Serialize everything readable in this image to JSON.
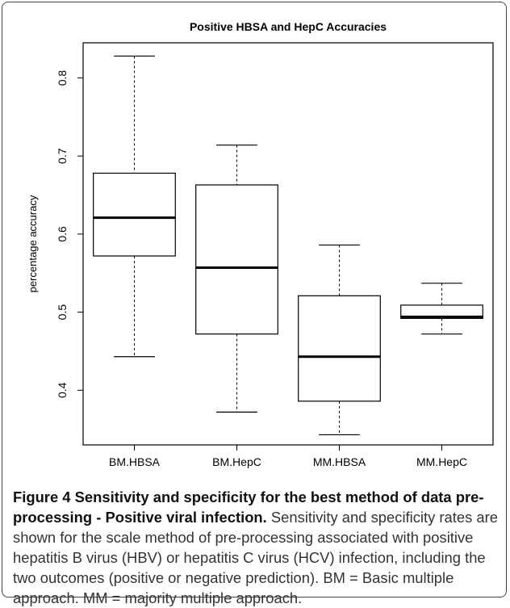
{
  "chart_data": {
    "type": "box",
    "title": "Positive HBSA and HepC Accuracies",
    "ylabel": "percentage accuracy",
    "xlabel": "",
    "ylim": [
      0.33,
      0.845
    ],
    "yticks": [
      0.4,
      0.5,
      0.6,
      0.7,
      0.8
    ],
    "ytick_labels": [
      "0.4",
      "0.5",
      "0.6",
      "0.7",
      "0.8"
    ],
    "grid": false,
    "categories": [
      "BM.HBSA",
      "BM.HepC",
      "MM.HBSA",
      "MM.HepC"
    ],
    "boxes": [
      {
        "name": "BM.HBSA",
        "min": 0.443,
        "q1": 0.572,
        "median": 0.621,
        "q3": 0.678,
        "max": 0.828
      },
      {
        "name": "BM.HepC",
        "min": 0.372,
        "q1": 0.472,
        "median": 0.557,
        "q3": 0.663,
        "max": 0.714
      },
      {
        "name": "MM.HBSA",
        "min": 0.343,
        "q1": 0.386,
        "median": 0.443,
        "q3": 0.521,
        "max": 0.586
      },
      {
        "name": "MM.HepC",
        "min": 0.472,
        "q1": 0.492,
        "median": 0.494,
        "q3": 0.509,
        "max": 0.537
      }
    ]
  },
  "caption": {
    "label": "Figure 4 Sensitivity and specificity for the best method of data pre-processing - Positive viral infection.",
    "body": "Sensitivity and specificity rates are shown for the scale method of pre-processing associated with positive hepatitis B virus (HBV) or hepatitis C virus (HCV) infection, including the two outcomes (positive or negative prediction). BM = Basic multiple approach. MM = majority multiple approach."
  }
}
